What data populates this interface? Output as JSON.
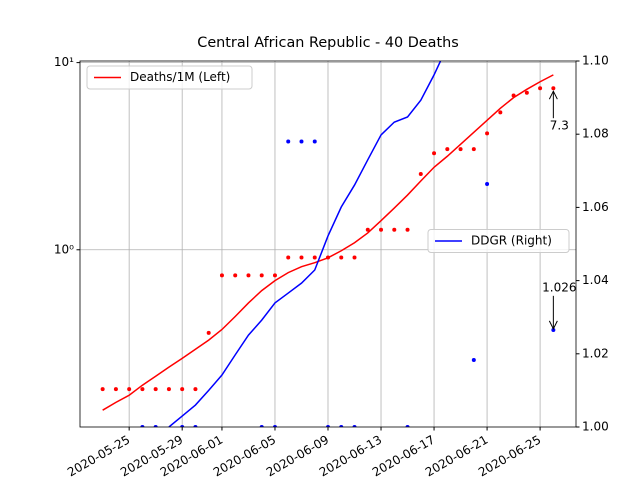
{
  "chart_data": {
    "type": "line",
    "title": "Central African Republic - 40 Deaths",
    "x": [
      "2020-05-23",
      "2020-05-24",
      "2020-05-25",
      "2020-05-26",
      "2020-05-27",
      "2020-05-28",
      "2020-05-29",
      "2020-05-30",
      "2020-05-31",
      "2020-06-01",
      "2020-06-02",
      "2020-06-03",
      "2020-06-04",
      "2020-06-05",
      "2020-06-06",
      "2020-06-07",
      "2020-06-08",
      "2020-06-09",
      "2020-06-10",
      "2020-06-11",
      "2020-06-12",
      "2020-06-13",
      "2020-06-14",
      "2020-06-15",
      "2020-06-16",
      "2020-06-17",
      "2020-06-18",
      "2020-06-19",
      "2020-06-20",
      "2020-06-21",
      "2020-06-22",
      "2020-06-23",
      "2020-06-24",
      "2020-06-25",
      "2020-06-26"
    ],
    "xlim": [
      "2020-05-21T07:00",
      "2020-06-27T17:00"
    ],
    "xticks": [
      "2020-05-25",
      "2020-05-29",
      "2020-06-01",
      "2020-06-05",
      "2020-06-09",
      "2020-06-13",
      "2020-06-17",
      "2020-06-21",
      "2020-06-25"
    ],
    "ylim": [
      0.113,
      10.2
    ],
    "yscale": "log",
    "yticks": [
      {
        "value": 1,
        "label": "10⁰"
      },
      {
        "value": 10,
        "label": "10¹"
      }
    ],
    "y2lim": [
      1.0,
      1.1
    ],
    "y2ticks": [
      {
        "value": 1.0,
        "label": "1.00"
      },
      {
        "value": 1.02,
        "label": "1.02"
      },
      {
        "value": 1.04,
        "label": "1.04"
      },
      {
        "value": 1.06,
        "label": "1.06"
      },
      {
        "value": 1.08,
        "label": "1.08"
      },
      {
        "value": 1.1,
        "label": "1.10"
      }
    ],
    "grid": true,
    "series": [
      {
        "name": "Deaths/1M (Left)",
        "type": "line",
        "color": "#ff0000",
        "legend": "upper left",
        "values": [
          0.139,
          0.153,
          0.167,
          0.189,
          0.211,
          0.236,
          0.263,
          0.294,
          0.329,
          0.375,
          0.44,
          0.52,
          0.605,
          0.684,
          0.755,
          0.812,
          0.853,
          0.906,
          0.988,
          1.09,
          1.23,
          1.43,
          1.67,
          1.96,
          2.33,
          2.76,
          3.16,
          3.66,
          4.24,
          4.92,
          5.7,
          6.5,
          7.2,
          7.9,
          8.6
        ]
      },
      {
        "type": "scatter",
        "color": "#ff0000",
        "values": [
          0.18,
          0.18,
          0.18,
          0.18,
          0.18,
          0.18,
          0.18,
          0.18,
          0.36,
          0.73,
          0.73,
          0.73,
          0.73,
          0.73,
          0.91,
          0.91,
          0.91,
          0.91,
          0.91,
          0.91,
          1.28,
          1.28,
          1.28,
          1.28,
          2.54,
          3.28,
          3.45,
          3.45,
          3.45,
          4.19,
          5.42,
          6.67,
          6.9,
          7.3,
          7.3
        ]
      },
      {
        "name": "DDGR (Right)",
        "type": "line",
        "color": "#0000ff",
        "axis": "y2",
        "legend": "center right",
        "values": [
          null,
          null,
          null,
          null,
          null,
          1.0,
          1.003,
          1.006,
          1.01,
          1.0142,
          1.0197,
          1.0251,
          1.0292,
          1.0339,
          1.0366,
          1.0393,
          1.0429,
          1.0522,
          1.0601,
          1.0661,
          1.073,
          1.0798,
          1.0833,
          1.0847,
          1.0893,
          1.0962,
          1.104,
          null,
          null,
          null,
          null,
          null,
          null,
          null,
          null
        ]
      },
      {
        "type": "scatter",
        "color": "#0000ff",
        "axis": "y2",
        "values": [
          null,
          null,
          null,
          1.0,
          1.0,
          null,
          1.0,
          1.0,
          null,
          null,
          null,
          null,
          1.0,
          1.0,
          1.078,
          1.078,
          1.078,
          1.0,
          1.0,
          1.0,
          null,
          null,
          null,
          1.0,
          null,
          null,
          null,
          null,
          1.0183,
          1.0664,
          null,
          null,
          null,
          null,
          1.0265
        ]
      }
    ],
    "annotations": [
      {
        "text": "7.3",
        "x": "2020-06-26",
        "y": 7.3
      },
      {
        "text": "1.026",
        "x": "2020-06-26",
        "y": 1.026,
        "axis": "y2"
      }
    ]
  }
}
